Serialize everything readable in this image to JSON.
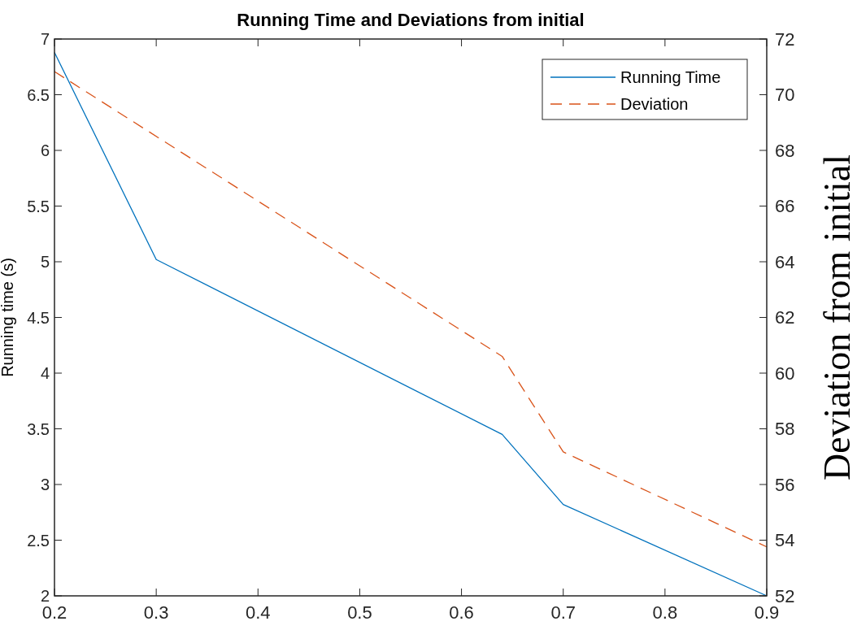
{
  "chart_data": {
    "type": "line",
    "title": "Running Time and Deviations from initial",
    "ylabel": "Running time (s)",
    "y2label": "Deviation from initial",
    "xlim": [
      0.2,
      0.9
    ],
    "xticks": [
      0.2,
      0.3,
      0.4,
      0.5,
      0.6,
      0.7,
      0.8,
      0.9
    ],
    "ylim": [
      2,
      7
    ],
    "yticks": [
      2,
      2.5,
      3,
      3.5,
      4,
      4.5,
      5,
      5.5,
      6,
      6.5,
      7
    ],
    "y2lim": [
      52,
      72
    ],
    "y2ticks": [
      52,
      54,
      56,
      58,
      60,
      62,
      64,
      66,
      68,
      70,
      72
    ],
    "legend": "top right",
    "series": [
      {
        "name": "Running Time",
        "color": "#0072bd",
        "x": [
          0.2,
          0.3,
          0.64,
          0.7,
          0.9
        ],
        "values": [
          6.88,
          5.02,
          3.45,
          2.82,
          2.0
        ],
        "line_style": "solid"
      },
      {
        "name": "Deviation",
        "color": "#d95319",
        "axis": "y2",
        "x": [
          0.2,
          0.64,
          0.7,
          0.9
        ],
        "values": [
          70.83,
          60.6,
          57.17,
          53.76
        ],
        "line_style": "dashed"
      }
    ]
  }
}
